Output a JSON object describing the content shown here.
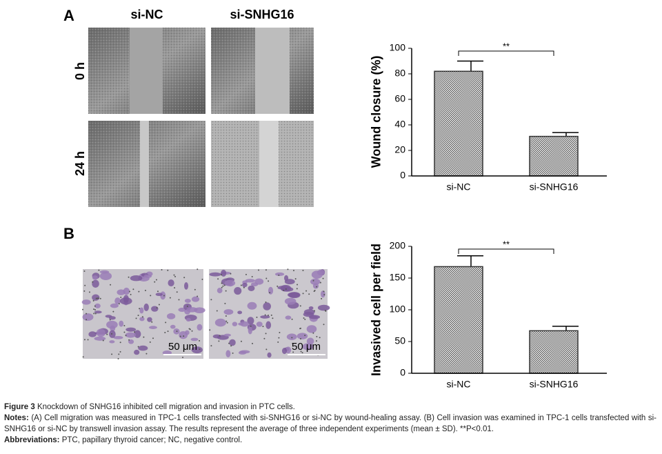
{
  "panels": {
    "A": {
      "label": "A",
      "columns": [
        "si-NC",
        "si-SNHG16"
      ],
      "rows": [
        "0 h",
        "24 h"
      ]
    },
    "B": {
      "label": "B",
      "scale_bars": [
        "50 μm",
        "50 μm"
      ]
    }
  },
  "chart_data": [
    {
      "type": "bar",
      "ylabel": "Wound closure (%)",
      "categories": [
        "si-NC",
        "si-SNHG16"
      ],
      "values": [
        82,
        31
      ],
      "errors": [
        8,
        3
      ],
      "color": "#333333",
      "ylim": [
        0,
        100
      ],
      "yticks": [
        0,
        20,
        40,
        60,
        80,
        100
      ],
      "annotation": "**"
    },
    {
      "type": "bar",
      "ylabel": "Invasived cell per field",
      "categories": [
        "si-NC",
        "si-SNHG16"
      ],
      "values": [
        168,
        67
      ],
      "errors": [
        17,
        7
      ],
      "color": "#333333",
      "ylim": [
        0,
        200
      ],
      "yticks": [
        0,
        50,
        100,
        150,
        200
      ],
      "annotation": "**"
    }
  ],
  "caption": {
    "figure_label": "Figure 3",
    "title": "Knockdown of SNHG16 inhibited cell migration and invasion in PTC cells.",
    "notes_label": "Notes:",
    "notes": "(A) Cell migration was measured in TPC-1 cells transfected with si-SNHG16 or si-NC by wound-healing assay. (B) Cell invasion was examined in TPC-1 cells transfected with si-SNHG16 or si-NC by transwell invasion assay. The results represent the average of three independent experiments (mean ± SD). **P<0.01.",
    "abbreviations_label": "Abbreviations:",
    "abbreviations": "PTC, papillary thyroid cancer; NC, negative control."
  }
}
